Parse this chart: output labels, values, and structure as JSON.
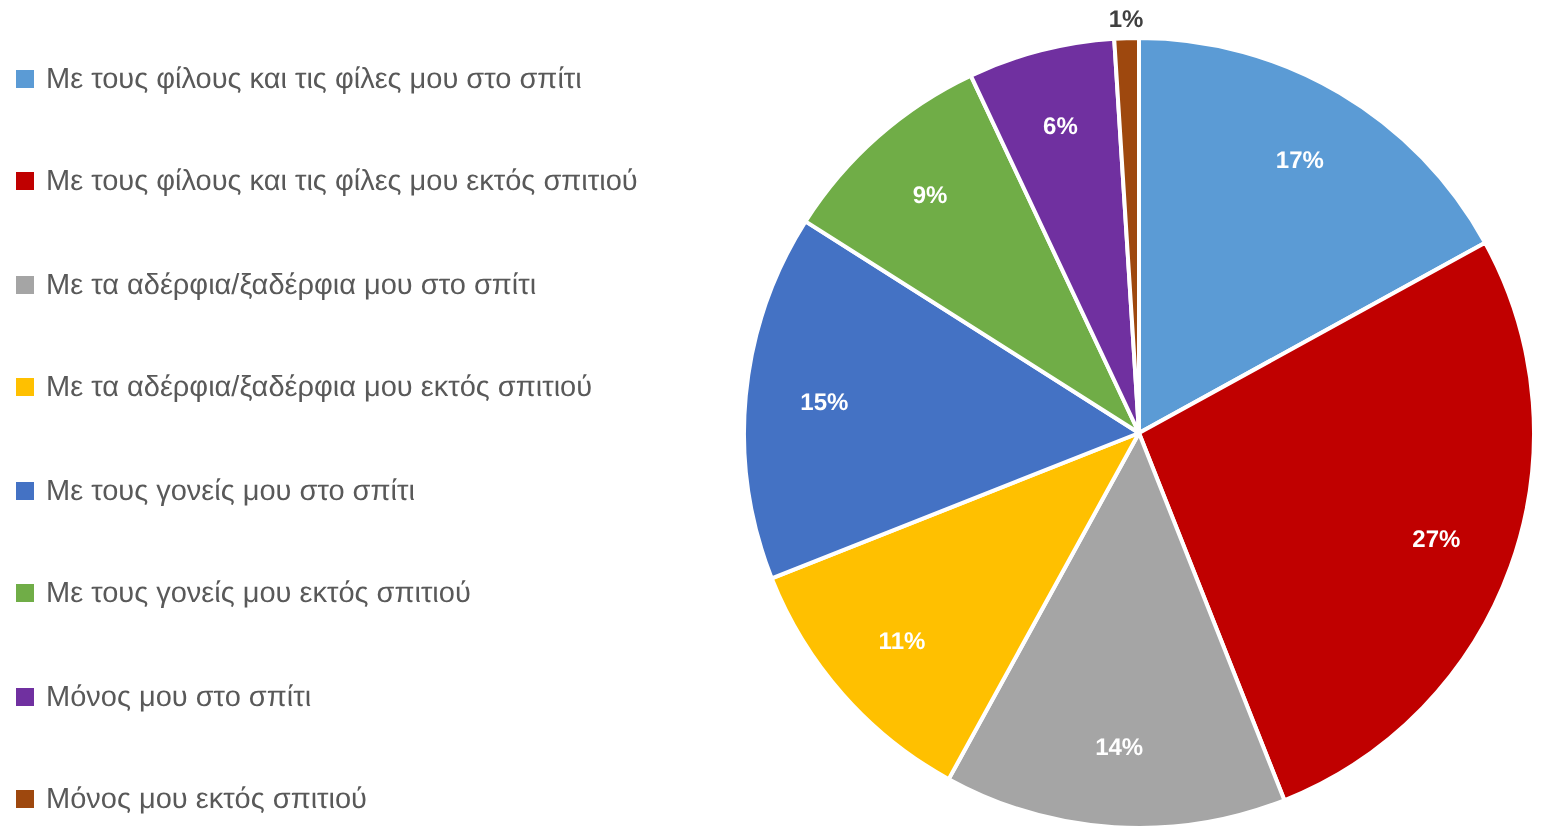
{
  "chart_data": {
    "type": "pie",
    "categories": [
      "Με τους φίλους και τις φίλες μου στο σπίτι",
      "Με τους φίλους και τις φίλες μου εκτός σπιτιού",
      "Με τα αδέρφια/ξαδέρφια μου στο σπίτι",
      "Με τα αδέρφια/ξαδέρφια μου εκτός σπιτιού",
      "Με τους γονείς μου στο σπίτι",
      "Με τους γονείς μου εκτός σπιτιού",
      "Μόνος μου στο σπίτι",
      "Μόνος μου εκτός σπιτιού"
    ],
    "values": [
      17,
      27,
      14,
      11,
      15,
      9,
      6,
      1
    ],
    "value_labels": [
      "17%",
      "27%",
      "14%",
      "11%",
      "15%",
      "9%",
      "6%",
      "1%"
    ],
    "colors": [
      "#5b9bd5",
      "#c00000",
      "#a5a5a5",
      "#ffc000",
      "#4472c4",
      "#70ad47",
      "#7030a0",
      "#9e480e"
    ],
    "legend": "left"
  }
}
